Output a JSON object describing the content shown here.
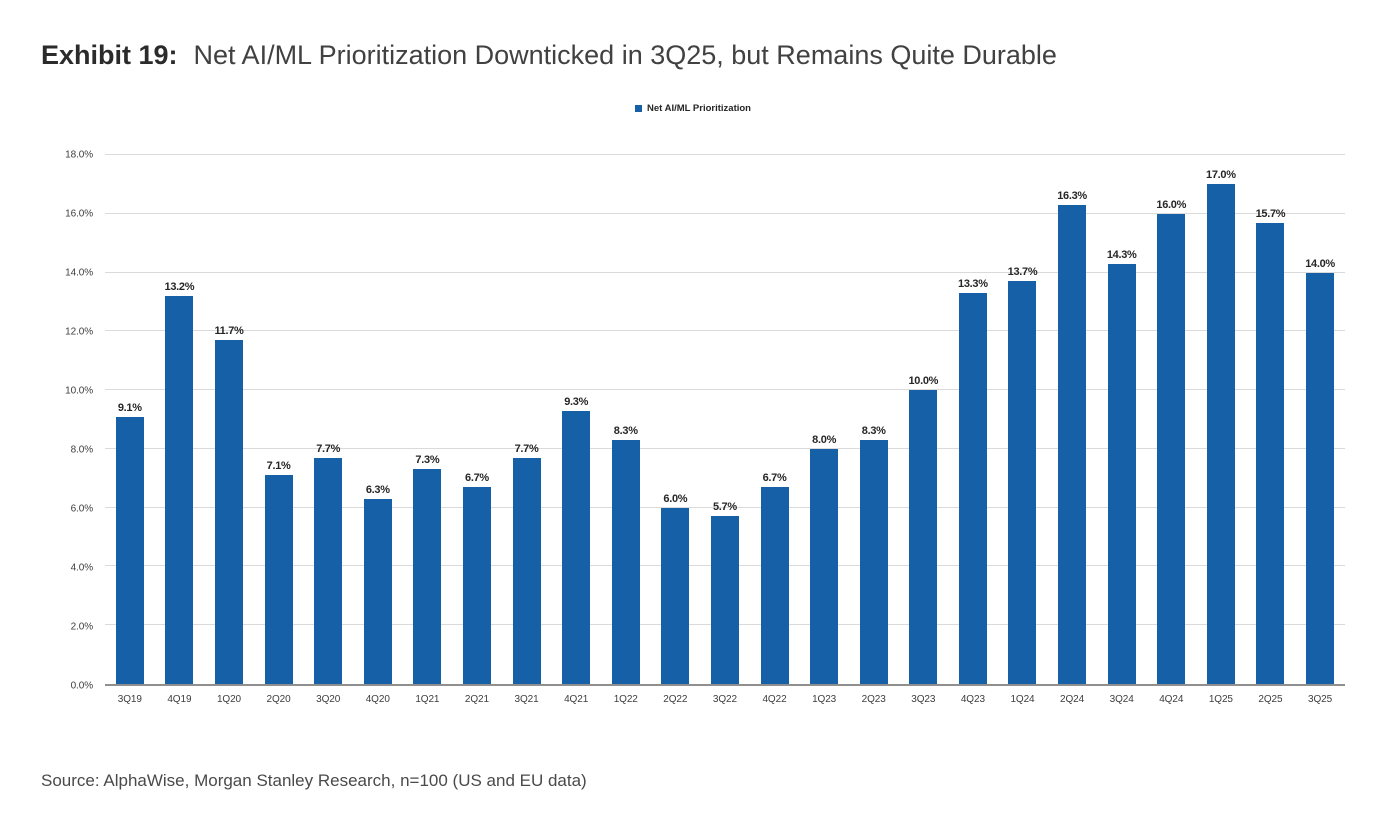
{
  "header": {
    "exhibit_label": "Exhibit 19:",
    "title": "Net AI/ML Prioritization Downticked in 3Q25, but Remains Quite Durable"
  },
  "legend": {
    "label": "Net AI/ML Prioritization"
  },
  "chart_data": {
    "type": "bar",
    "title": "Net AI/ML Prioritization Downticked in 3Q25, but Remains Quite Durable",
    "legend_entries": [
      "Net AI/ML Prioritization"
    ],
    "legend_position": "top-center",
    "categories": [
      "3Q19",
      "4Q19",
      "1Q20",
      "2Q20",
      "3Q20",
      "4Q20",
      "1Q21",
      "2Q21",
      "3Q21",
      "4Q21",
      "1Q22",
      "2Q22",
      "3Q22",
      "4Q22",
      "1Q23",
      "2Q23",
      "3Q23",
      "4Q23",
      "1Q24",
      "2Q24",
      "3Q24",
      "4Q24",
      "1Q25",
      "2Q25",
      "3Q25"
    ],
    "values": [
      9.1,
      13.2,
      11.7,
      7.1,
      7.7,
      6.3,
      7.3,
      6.7,
      7.7,
      9.3,
      8.3,
      6.0,
      5.7,
      6.7,
      8.0,
      8.3,
      10.0,
      13.3,
      13.7,
      16.3,
      14.3,
      16.0,
      17.0,
      15.7,
      14.0
    ],
    "value_label_suffix": "%",
    "xlabel": "",
    "ylabel": "",
    "ylim": [
      0,
      18
    ],
    "yticks": [
      0,
      2,
      4,
      6,
      8,
      10,
      12,
      14,
      16,
      18
    ],
    "ytick_suffix": "%",
    "grid": true,
    "bar_color": "#1560a7"
  },
  "footer": {
    "source": "Source: AlphaWise, Morgan Stanley Research, n=100 (US and EU data)"
  },
  "colors": {
    "bar": "#1560a7",
    "gridline": "#dadada",
    "axis_baseline": "#8f8f8f",
    "title_text": "#414141",
    "label_text": "#262626",
    "source_text": "#4a4a4a"
  }
}
